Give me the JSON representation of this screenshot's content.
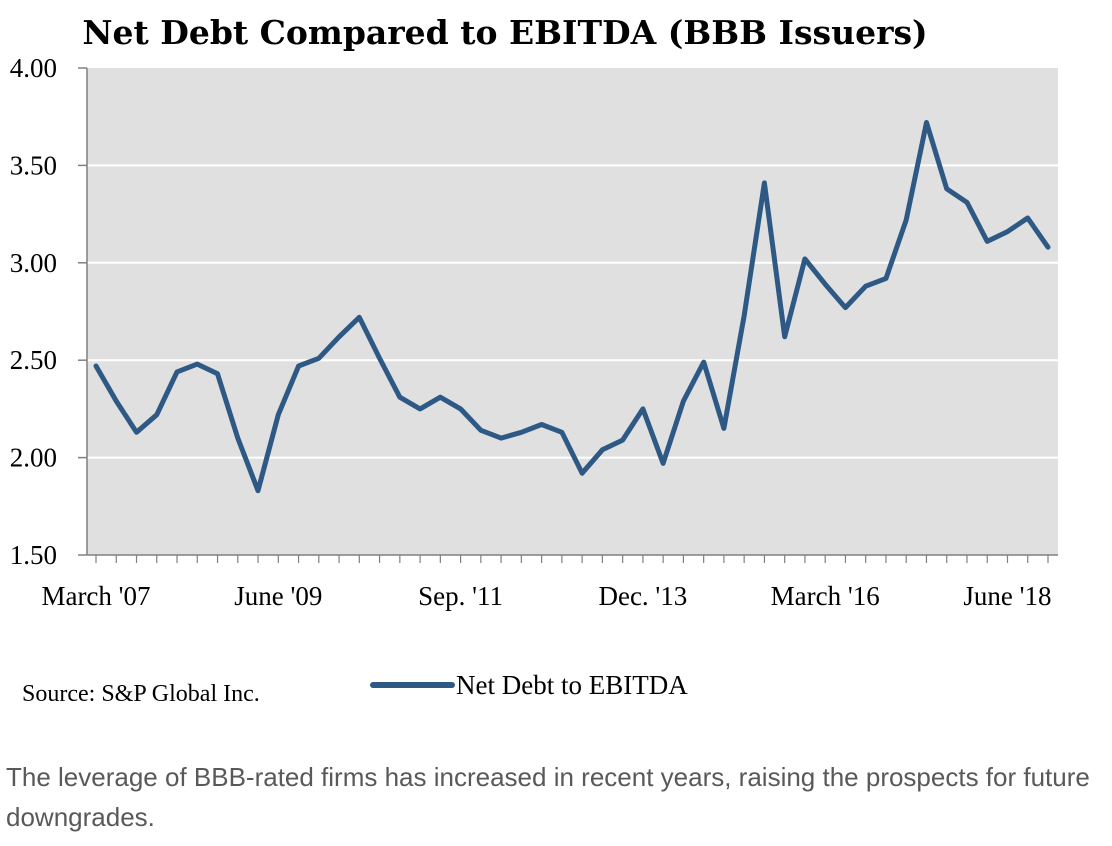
{
  "caption": "The leverage of BBB-rated firms has increased in recent years, raising the prospects for future downgrades.",
  "chart_data": {
    "type": "line",
    "title": "Net Debt Compared to EBITDA (BBB Issuers)",
    "source": "Source: S&P Global Inc.",
    "xlabel": "",
    "ylabel": "",
    "ylim": [
      1.5,
      4.0
    ],
    "yticks": [
      "1.50",
      "2.00",
      "2.50",
      "3.00",
      "3.50",
      "4.00"
    ],
    "x_tick_labels": [
      "March '07",
      "June '09",
      "Sep. '11",
      "Dec. '13",
      "March '16",
      "June '18"
    ],
    "x_tick_label_indices": [
      0,
      9,
      18,
      27,
      36,
      45
    ],
    "grid": "horizontal",
    "background": "#e0e0e0",
    "legend": "bottom",
    "series": [
      {
        "name": "Net Debt to EBITDA",
        "color": "#2e5985",
        "values": [
          2.47,
          2.29,
          2.13,
          2.22,
          2.44,
          2.48,
          2.43,
          2.1,
          1.83,
          2.22,
          2.47,
          2.51,
          2.62,
          2.72,
          2.51,
          2.31,
          2.25,
          2.31,
          2.25,
          2.14,
          2.1,
          2.13,
          2.17,
          2.13,
          1.92,
          2.04,
          2.09,
          2.25,
          1.97,
          2.29,
          2.49,
          2.15,
          2.73,
          3.41,
          2.62,
          3.02,
          2.89,
          2.77,
          2.88,
          2.92,
          3.22,
          3.72,
          3.38,
          3.31,
          3.11,
          3.16,
          3.23,
          3.08
        ]
      }
    ]
  }
}
